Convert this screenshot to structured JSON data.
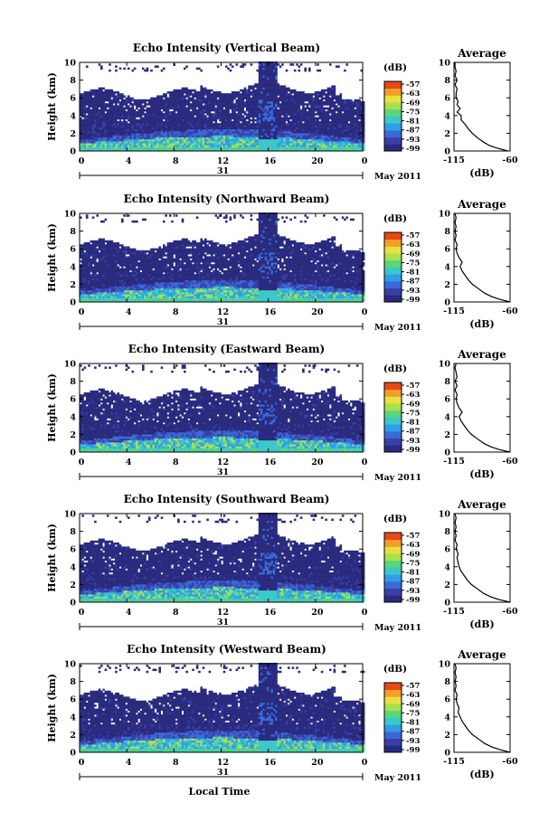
{
  "chart_data": {
    "type": "heatmap",
    "xlabel": "Local Time",
    "ylabel": "Height (km)",
    "date_label": "May 2011",
    "day_label": "31",
    "x_ticks": [
      "0",
      "4",
      "8",
      "12",
      "16",
      "20",
      "0"
    ],
    "xlim": [
      0,
      24
    ],
    "y_ticks": [
      "0",
      "2",
      "4",
      "6",
      "8",
      "10"
    ],
    "ylim": [
      0,
      10
    ],
    "colorbar": {
      "unit": "(dB)",
      "levels": [
        "-57",
        "-63",
        "-69",
        "-75",
        "-81",
        "-87",
        "-93",
        "-99"
      ],
      "range": [
        -99,
        -57
      ],
      "colors": [
        "#2a2a7e",
        "#3a3fa8",
        "#3a6ad8",
        "#2f9ee8",
        "#3cc8c8",
        "#58d67a",
        "#a8e050",
        "#e8e040",
        "#f0a028",
        "#e84818"
      ]
    },
    "profile": {
      "title": "Average",
      "xlabel": "(dB)",
      "x_ticks": [
        "-115",
        "-60"
      ],
      "xlim": [
        -115,
        -60
      ],
      "ylim": [
        0,
        10
      ],
      "y_ticks": [
        "0",
        "2",
        "4",
        "6",
        "8",
        "10"
      ]
    },
    "panels": [
      {
        "title": "Echo Intensity (Vertical Beam)",
        "beam": "vertical",
        "avg_profile": [
          [
            0.0,
            -62
          ],
          [
            0.3,
            -72
          ],
          [
            0.6,
            -80
          ],
          [
            1.0,
            -86
          ],
          [
            1.5,
            -92
          ],
          [
            2.0,
            -97
          ],
          [
            2.5,
            -101
          ],
          [
            3.0,
            -104
          ],
          [
            3.5,
            -108
          ],
          [
            4.0,
            -108
          ],
          [
            4.4,
            -112
          ],
          [
            4.8,
            -109
          ],
          [
            5.2,
            -112
          ],
          [
            5.6,
            -111
          ],
          [
            6.0,
            -113
          ],
          [
            6.5,
            -113
          ],
          [
            7.0,
            -112
          ],
          [
            7.5,
            -114
          ],
          [
            8.0,
            -112
          ],
          [
            8.5,
            -114
          ],
          [
            9.0,
            -113
          ],
          [
            9.5,
            -114
          ],
          [
            10.0,
            -114
          ]
        ]
      },
      {
        "title": "Echo Intensity (Northward Beam)",
        "beam": "north",
        "avg_profile": [
          [
            0.0,
            -60
          ],
          [
            0.3,
            -70
          ],
          [
            0.6,
            -78
          ],
          [
            1.0,
            -85
          ],
          [
            1.5,
            -91
          ],
          [
            2.0,
            -97
          ],
          [
            2.5,
            -101
          ],
          [
            3.0,
            -104
          ],
          [
            3.5,
            -107
          ],
          [
            4.0,
            -109
          ],
          [
            4.5,
            -107
          ],
          [
            5.0,
            -110
          ],
          [
            5.5,
            -112
          ],
          [
            6.0,
            -113
          ],
          [
            6.5,
            -112
          ],
          [
            7.0,
            -114
          ],
          [
            7.5,
            -113
          ],
          [
            8.0,
            -114
          ],
          [
            8.5,
            -113
          ],
          [
            9.0,
            -114
          ],
          [
            9.5,
            -113
          ],
          [
            10.0,
            -114
          ]
        ]
      },
      {
        "title": "Echo Intensity (Eastward Beam)",
        "beam": "east",
        "avg_profile": [
          [
            0.0,
            -60
          ],
          [
            0.3,
            -71
          ],
          [
            0.6,
            -79
          ],
          [
            1.0,
            -86
          ],
          [
            1.5,
            -92
          ],
          [
            2.0,
            -98
          ],
          [
            2.5,
            -102
          ],
          [
            3.0,
            -105
          ],
          [
            3.5,
            -108
          ],
          [
            4.0,
            -110
          ],
          [
            4.5,
            -107
          ],
          [
            5.0,
            -110
          ],
          [
            5.5,
            -112
          ],
          [
            6.0,
            -113
          ],
          [
            6.5,
            -112
          ],
          [
            7.0,
            -114
          ],
          [
            7.5,
            -112
          ],
          [
            8.0,
            -114
          ],
          [
            8.5,
            -112
          ],
          [
            9.0,
            -113
          ],
          [
            9.5,
            -114
          ],
          [
            10.0,
            -113
          ]
        ]
      },
      {
        "title": "Echo Intensity (Southward Beam)",
        "beam": "south",
        "avg_profile": [
          [
            0.0,
            -60
          ],
          [
            0.3,
            -71
          ],
          [
            0.6,
            -79
          ],
          [
            1.0,
            -86
          ],
          [
            1.5,
            -92
          ],
          [
            2.0,
            -98
          ],
          [
            2.5,
            -102
          ],
          [
            3.0,
            -105
          ],
          [
            3.5,
            -108
          ],
          [
            4.0,
            -110
          ],
          [
            4.5,
            -111
          ],
          [
            5.0,
            -112
          ],
          [
            5.5,
            -111
          ],
          [
            6.0,
            -113
          ],
          [
            6.5,
            -112
          ],
          [
            7.0,
            -114
          ],
          [
            7.5,
            -113
          ],
          [
            8.0,
            -114
          ],
          [
            8.5,
            -113
          ],
          [
            9.0,
            -114
          ],
          [
            9.5,
            -113
          ],
          [
            10.0,
            -114
          ]
        ]
      },
      {
        "title": "Echo Intensity (Westward Beam)",
        "beam": "west",
        "avg_profile": [
          [
            0.0,
            -60
          ],
          [
            0.3,
            -70
          ],
          [
            0.6,
            -78
          ],
          [
            1.0,
            -85
          ],
          [
            1.5,
            -91
          ],
          [
            2.0,
            -97
          ],
          [
            2.5,
            -101
          ],
          [
            3.0,
            -104
          ],
          [
            3.5,
            -107
          ],
          [
            4.0,
            -109
          ],
          [
            4.5,
            -111
          ],
          [
            5.0,
            -110
          ],
          [
            5.5,
            -112
          ],
          [
            6.0,
            -113
          ],
          [
            6.5,
            -112
          ],
          [
            7.0,
            -114
          ],
          [
            7.5,
            -113
          ],
          [
            8.0,
            -114
          ],
          [
            8.5,
            -113
          ],
          [
            9.0,
            -114
          ],
          [
            9.5,
            -113
          ],
          [
            10.0,
            -114
          ]
        ]
      }
    ]
  }
}
